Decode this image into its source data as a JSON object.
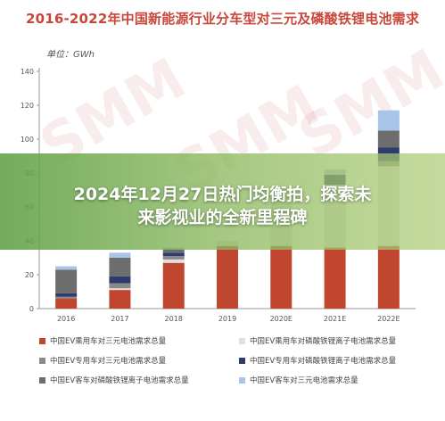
{
  "chart_data": {
    "type": "bar",
    "stacked": true,
    "title": "2016-2022年中国新能源行业分车型对三元及磷酸铁锂电池需求",
    "unit": "单位：GWh",
    "xlabel": "",
    "ylabel": "",
    "ylim": [
      0,
      140
    ],
    "yticks": [
      "0",
      "20",
      "40",
      "60",
      "80",
      "100",
      "120",
      "140"
    ],
    "grid": false,
    "legend_position": "bottom",
    "categories": [
      "2016",
      "2017",
      "2018",
      "2019",
      "2020E",
      "2021E",
      "2022E"
    ],
    "series": [
      {
        "name": "中国EV乘用车对三元电池需求总量",
        "color": "#c0462f",
        "values": [
          6,
          11,
          27,
          37,
          37,
          36,
          37
        ]
      },
      {
        "name": "中国EV乘用车对磷酸铁锂离子电池需求总量",
        "color": "#e0e0e0",
        "values": [
          0,
          1,
          2,
          3,
          30,
          37,
          47
        ]
      },
      {
        "name": "中国EV专用车对三元电池需求总量",
        "color": "#8a8a8a",
        "values": [
          1,
          3,
          2,
          0,
          0,
          0,
          3
        ]
      },
      {
        "name": "中国EV专用车对磷酸铁锂离子电池需求总量",
        "color": "#2e3b6e",
        "values": [
          2,
          4,
          2,
          0,
          0,
          6,
          8
        ]
      },
      {
        "name": "中国EV客车对磷酸铁锂离子电池需求总量",
        "color": "#6d6d6d",
        "values": [
          14,
          11,
          2,
          0,
          0,
          0,
          10
        ]
      },
      {
        "name": "中国EV客车对三元电池需求总量",
        "color": "#a8c4e6",
        "values": [
          2,
          3,
          1,
          0,
          0,
          3,
          12
        ]
      }
    ]
  },
  "overlay": {
    "line1": "2024年12月27日热门均衡拍，探索未",
    "line2": "来影视业的全新里程碑",
    "band_color": "#6aa84f"
  },
  "watermark_text": "SMM"
}
